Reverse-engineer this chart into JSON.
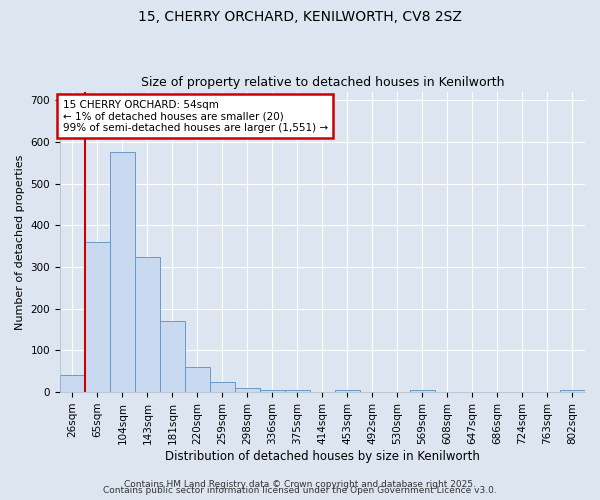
{
  "title1": "15, CHERRY ORCHARD, KENILWORTH, CV8 2SZ",
  "title2": "Size of property relative to detached houses in Kenilworth",
  "xlabel": "Distribution of detached houses by size in Kenilworth",
  "ylabel": "Number of detached properties",
  "bin_labels": [
    "26sqm",
    "65sqm",
    "104sqm",
    "143sqm",
    "181sqm",
    "220sqm",
    "259sqm",
    "298sqm",
    "336sqm",
    "375sqm",
    "414sqm",
    "453sqm",
    "492sqm",
    "530sqm",
    "569sqm",
    "608sqm",
    "647sqm",
    "686sqm",
    "724sqm",
    "763sqm",
    "802sqm"
  ],
  "bar_heights": [
    40,
    360,
    575,
    325,
    170,
    60,
    25,
    10,
    6,
    6,
    0,
    6,
    0,
    0,
    5,
    0,
    0,
    0,
    0,
    0,
    5
  ],
  "bar_color": "#c9d9ef",
  "bar_edge_color": "#6699cc",
  "red_line_x": 0.5,
  "annotation_title": "15 CHERRY ORCHARD: 54sqm",
  "annotation_line2": "← 1% of detached houses are smaller (20)",
  "annotation_line3": "99% of semi-detached houses are larger (1,551) →",
  "annotation_box_color": "#ffffff",
  "annotation_border_color": "#cc0000",
  "ylim": [
    0,
    720
  ],
  "yticks": [
    0,
    100,
    200,
    300,
    400,
    500,
    600,
    700
  ],
  "footer1": "Contains HM Land Registry data © Crown copyright and database right 2025.",
  "footer2": "Contains public sector information licensed under the Open Government Licence v3.0.",
  "bg_color": "#dde6f0",
  "grid_color": "#ffffff",
  "title1_fontsize": 10,
  "title2_fontsize": 9,
  "xlabel_fontsize": 8.5,
  "ylabel_fontsize": 8,
  "tick_fontsize": 7.5,
  "footer_fontsize": 6.5
}
